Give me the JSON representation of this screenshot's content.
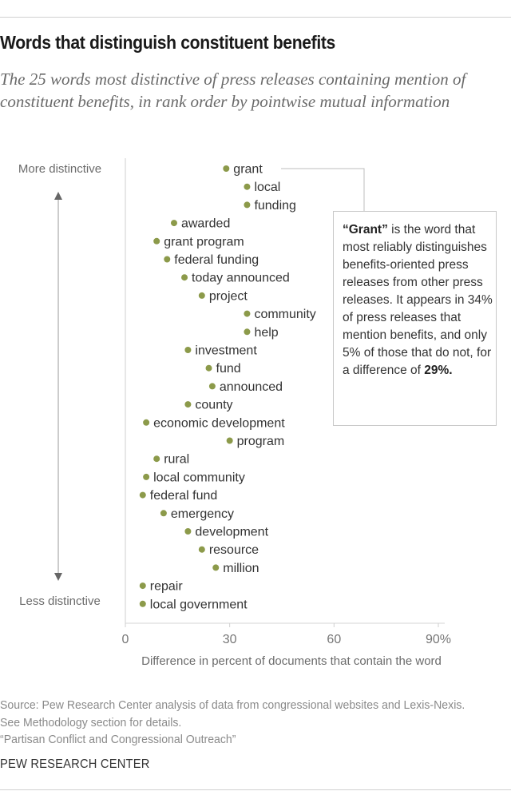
{
  "title": "Words that distinguish constituent benefits",
  "subtitle": "The 25 words most distinctive of press releases containing mention of constituent benefits, in rank order by pointwise mutual information",
  "callout": {
    "bold_lead": "“Grant”",
    "text": " is the word that most reliably distinguishes benefits-oriented press releases from other press releases. It appears in 34% of press releases that mention benefits, and only 5% of those that do not, for a difference of ",
    "bold_end": "29%."
  },
  "source": {
    "line1": "Source: Pew Research Center analysis of data from congressional websites and Lexis-Nexis. See Methodology section for details.",
    "line2": "“Partisan Conflict and Congressional Outreach”"
  },
  "brand": "PEW RESEARCH CENTER",
  "colors": {
    "dot": "#8c9a4a",
    "text": "#333333",
    "axis": "#cccccc"
  },
  "chart_data": {
    "type": "scatter",
    "title": "Words that distinguish constituent benefits",
    "xlabel": "Difference in percent of documents that contain the word",
    "ylabel_top": "More distinctive",
    "ylabel_bottom": "Less distinctive",
    "xlim": [
      0,
      90
    ],
    "xticks": [
      0,
      30,
      60,
      90
    ],
    "xtick_labels": [
      "0",
      "30",
      "60",
      "90%"
    ],
    "grid": false,
    "points": [
      {
        "word": "grant",
        "value": 29
      },
      {
        "word": "local",
        "value": 35
      },
      {
        "word": "funding",
        "value": 35
      },
      {
        "word": "awarded",
        "value": 14
      },
      {
        "word": "grant program",
        "value": 9
      },
      {
        "word": "federal funding",
        "value": 12
      },
      {
        "word": "today announced",
        "value": 17
      },
      {
        "word": "project",
        "value": 22
      },
      {
        "word": "community",
        "value": 35
      },
      {
        "word": "help",
        "value": 35
      },
      {
        "word": "investment",
        "value": 18
      },
      {
        "word": "fund",
        "value": 24
      },
      {
        "word": "announced",
        "value": 25
      },
      {
        "word": "county",
        "value": 18
      },
      {
        "word": "economic development",
        "value": 6
      },
      {
        "word": "program",
        "value": 30
      },
      {
        "word": "rural",
        "value": 9
      },
      {
        "word": "local community",
        "value": 6
      },
      {
        "word": "federal fund",
        "value": 5
      },
      {
        "word": "emergency",
        "value": 11
      },
      {
        "word": "development",
        "value": 18
      },
      {
        "word": "resource",
        "value": 22
      },
      {
        "word": "million",
        "value": 26
      },
      {
        "word": "repair",
        "value": 5
      },
      {
        "word": "local government",
        "value": 5
      }
    ]
  }
}
